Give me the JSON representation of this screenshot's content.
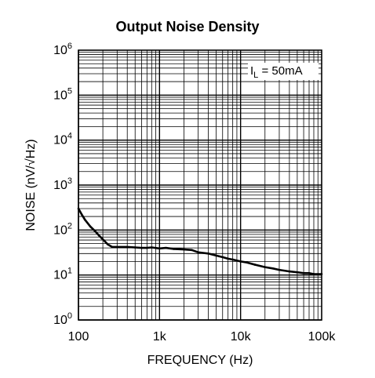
{
  "chart_data": {
    "type": "line",
    "title": "Output Noise Density",
    "xlabel": "FREQUENCY (Hz)",
    "ylabel": "NOISE (nV/√Hz)",
    "xscale": "log",
    "yscale": "log",
    "xlim": [
      100,
      100000
    ],
    "ylim": [
      1,
      1000000
    ],
    "grid": true,
    "x_tick_labels": [
      {
        "value": 100,
        "label": "100"
      },
      {
        "value": 1000,
        "label": "1k"
      },
      {
        "value": 10000,
        "label": "10k"
      },
      {
        "value": 100000,
        "label": "100k"
      }
    ],
    "y_tick_labels": [
      {
        "value": 1,
        "base": "10",
        "exp": "0"
      },
      {
        "value": 10,
        "base": "10",
        "exp": "1"
      },
      {
        "value": 100,
        "base": "10",
        "exp": "2"
      },
      {
        "value": 1000,
        "base": "10",
        "exp": "3"
      },
      {
        "value": 10000,
        "base": "10",
        "exp": "4"
      },
      {
        "value": 100000,
        "base": "10",
        "exp": "5"
      },
      {
        "value": 1000000,
        "base": "10",
        "exp": "6"
      }
    ],
    "annotation": {
      "prefix": "I",
      "sub": "L",
      "suffix": " = 50mA",
      "position": "top-right"
    },
    "series": [
      {
        "color": "#000000",
        "x": [
          100,
          110,
          120,
          140,
          160,
          180,
          200,
          230,
          260,
          300,
          400,
          500,
          600,
          700,
          800,
          1000,
          1200,
          1500,
          2000,
          2500,
          3000,
          4000,
          5000,
          6000,
          7000,
          8000,
          10000,
          12000,
          15000,
          20000,
          25000,
          30000,
          40000,
          50000,
          60000,
          70000,
          80000,
          100000
        ],
        "y": [
          300,
          220,
          170,
          120,
          95,
          75,
          62,
          48,
          42,
          42,
          42,
          41,
          40,
          40,
          41,
          39,
          40,
          38,
          37,
          36,
          32,
          30,
          27,
          25,
          23,
          22,
          20,
          19,
          17,
          15,
          14,
          13,
          12,
          11.5,
          11,
          11,
          10.5,
          10.5
        ]
      }
    ]
  }
}
